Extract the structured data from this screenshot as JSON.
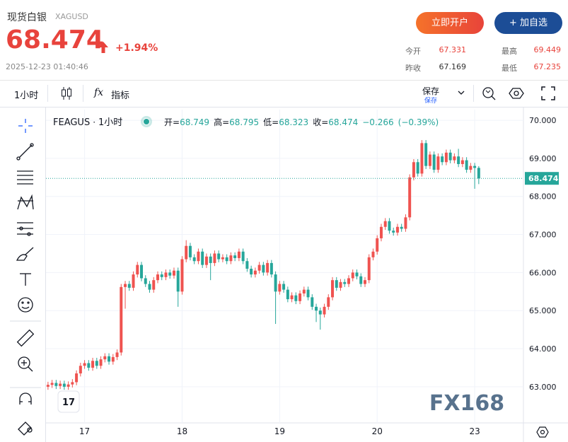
{
  "header": {
    "title": "现货白银",
    "symbol": "XAGUSD",
    "price": "68.474",
    "change": "+1.94%",
    "timestamp": "2025-12-23 01:40:46",
    "open_account": "立即开户",
    "add_watch": "+ 加自选",
    "stats": [
      {
        "label": "今开",
        "value": "67.331"
      },
      {
        "label": "最高",
        "value": "69.449"
      },
      {
        "label": "昨收",
        "value": "67.169"
      },
      {
        "label": "最低",
        "value": "67.235"
      }
    ]
  },
  "toolbar": {
    "interval": "1小时",
    "indicator_icon": "fx",
    "indicators": "指标",
    "save": "保存",
    "save_sub": "保存"
  },
  "chart_data": {
    "type": "candlestick",
    "symbol": "FEAGUS",
    "interval": "1小时",
    "ohlc_labels": [
      "开=",
      "高=",
      "低=",
      "收="
    ],
    "change": {
      "value": -0.266,
      "label": "−0.266"
    },
    "change_pct": {
      "value": -0.39,
      "label": "(−0.39%)"
    },
    "watermark": "FX168",
    "up_color": "#ef5350",
    "down_color": "#26a69a",
    "grid": true,
    "ylim": [
      62.05,
      70.28
    ],
    "yticks": [
      {
        "value": 63,
        "label": "63.000"
      },
      {
        "value": 64,
        "label": "64.000"
      },
      {
        "value": 65,
        "label": "65.000"
      },
      {
        "value": 66,
        "label": "66.000"
      },
      {
        "value": 67,
        "label": "67.000"
      },
      {
        "value": 68,
        "label": "68.000"
      },
      {
        "value": 69,
        "label": "69.000"
      },
      {
        "value": 70,
        "label": "70.000"
      }
    ],
    "categories": [
      null,
      null,
      null,
      null,
      null,
      null,
      null,
      null,
      null,
      "17",
      null,
      null,
      null,
      null,
      null,
      null,
      null,
      null,
      null,
      null,
      null,
      null,
      null,
      null,
      null,
      null,
      null,
      null,
      null,
      null,
      null,
      null,
      null,
      "18",
      null,
      null,
      null,
      null,
      null,
      null,
      null,
      null,
      null,
      null,
      null,
      null,
      null,
      null,
      null,
      null,
      null,
      null,
      null,
      null,
      null,
      null,
      null,
      "19",
      null,
      null,
      null,
      null,
      null,
      null,
      null,
      null,
      null,
      null,
      null,
      null,
      null,
      null,
      null,
      null,
      null,
      null,
      null,
      null,
      null,
      null,
      null,
      "20",
      null,
      null,
      null,
      null,
      null,
      null,
      null,
      null,
      null,
      null,
      null,
      null,
      null,
      null,
      null,
      null,
      null,
      null,
      null,
      null,
      null,
      null,
      null,
      "23",
      null
    ],
    "ohlc": [
      [
        63.0,
        63.13,
        62.92,
        63.05
      ],
      [
        63.05,
        63.18,
        62.97,
        63.1
      ],
      [
        63.1,
        63.18,
        62.94,
        63.02
      ],
      [
        63.02,
        63.16,
        62.94,
        63.08
      ],
      [
        63.08,
        63.16,
        62.92,
        63.0
      ],
      [
        63.0,
        63.14,
        62.92,
        63.06
      ],
      [
        63.06,
        63.2,
        62.98,
        63.12
      ],
      [
        63.12,
        63.43,
        63.04,
        63.35
      ],
      [
        63.35,
        63.63,
        63.27,
        63.55
      ],
      [
        63.55,
        63.7,
        63.47,
        63.62
      ],
      [
        63.62,
        63.7,
        63.42,
        63.5
      ],
      [
        63.5,
        63.76,
        63.42,
        63.68
      ],
      [
        63.68,
        63.76,
        63.47,
        63.55
      ],
      [
        63.55,
        63.8,
        63.47,
        63.72
      ],
      [
        63.72,
        63.88,
        63.64,
        63.8
      ],
      [
        63.8,
        63.88,
        63.58,
        63.66
      ],
      [
        63.66,
        63.86,
        63.58,
        63.78
      ],
      [
        63.78,
        63.98,
        63.7,
        63.9
      ],
      [
        63.9,
        65.7,
        63.82,
        65.62
      ],
      [
        65.62,
        65.78,
        65.05,
        65.7
      ],
      [
        65.7,
        65.78,
        65.52,
        65.6
      ],
      [
        65.6,
        66.03,
        65.52,
        65.95
      ],
      [
        65.95,
        66.28,
        65.87,
        66.2
      ],
      [
        66.2,
        66.28,
        65.77,
        65.85
      ],
      [
        65.85,
        65.93,
        65.62,
        65.7
      ],
      [
        65.7,
        65.78,
        65.47,
        65.55
      ],
      [
        65.55,
        65.88,
        65.47,
        65.8
      ],
      [
        65.8,
        66.03,
        65.72,
        65.95
      ],
      [
        65.95,
        66.03,
        65.8,
        65.88
      ],
      [
        65.88,
        66.08,
        65.8,
        66.0
      ],
      [
        66.0,
        66.08,
        65.84,
        65.92
      ],
      [
        65.92,
        66.13,
        65.84,
        66.05
      ],
      [
        66.05,
        66.13,
        65.1,
        65.5
      ],
      [
        65.5,
        66.43,
        65.42,
        66.35
      ],
      [
        66.35,
        66.85,
        66.27,
        66.7
      ],
      [
        66.7,
        66.78,
        66.32,
        66.4
      ],
      [
        66.4,
        66.48,
        66.22,
        66.3
      ],
      [
        66.3,
        66.63,
        66.22,
        66.55
      ],
      [
        66.55,
        66.63,
        66.12,
        66.2
      ],
      [
        66.2,
        66.5,
        66.12,
        66.42
      ],
      [
        66.42,
        66.5,
        65.8,
        66.25
      ],
      [
        66.25,
        66.58,
        66.17,
        66.5
      ],
      [
        66.5,
        66.58,
        66.27,
        66.35
      ],
      [
        66.35,
        66.48,
        66.27,
        66.4
      ],
      [
        66.4,
        66.48,
        66.22,
        66.3
      ],
      [
        66.3,
        66.53,
        66.22,
        66.45
      ],
      [
        66.45,
        66.53,
        66.3,
        66.38
      ],
      [
        66.38,
        66.63,
        66.3,
        66.55
      ],
      [
        66.55,
        66.63,
        66.22,
        66.3
      ],
      [
        66.3,
        66.38,
        66.02,
        66.1
      ],
      [
        66.1,
        66.18,
        65.87,
        65.95
      ],
      [
        65.95,
        66.13,
        65.87,
        66.05
      ],
      [
        66.05,
        66.28,
        65.97,
        66.2
      ],
      [
        66.2,
        66.28,
        65.92,
        66.0
      ],
      [
        66.0,
        66.33,
        65.92,
        66.25
      ],
      [
        66.25,
        66.33,
        65.87,
        65.95
      ],
      [
        65.95,
        66.03,
        64.65,
        65.5
      ],
      [
        65.5,
        65.78,
        65.42,
        65.7
      ],
      [
        65.7,
        65.78,
        65.47,
        65.55
      ],
      [
        65.55,
        65.63,
        65.22,
        65.3
      ],
      [
        65.3,
        65.48,
        65.22,
        65.4
      ],
      [
        65.4,
        65.48,
        65.17,
        65.25
      ],
      [
        65.25,
        65.53,
        65.17,
        65.45
      ],
      [
        65.45,
        65.63,
        65.37,
        65.55
      ],
      [
        65.55,
        65.63,
        65.27,
        65.35
      ],
      [
        65.35,
        65.43,
        65.02,
        65.1
      ],
      [
        65.1,
        65.18,
        64.7,
        65.0
      ],
      [
        65.0,
        65.08,
        64.5,
        64.9
      ],
      [
        64.9,
        65.18,
        64.82,
        65.1
      ],
      [
        65.1,
        65.43,
        65.02,
        65.35
      ],
      [
        65.35,
        65.88,
        65.27,
        65.8
      ],
      [
        65.8,
        65.88,
        65.52,
        65.6
      ],
      [
        65.6,
        65.83,
        65.52,
        65.75
      ],
      [
        65.75,
        65.83,
        65.62,
        65.7
      ],
      [
        65.7,
        65.93,
        65.62,
        65.85
      ],
      [
        65.85,
        66.08,
        65.77,
        66.0
      ],
      [
        66.0,
        66.08,
        65.82,
        65.9
      ],
      [
        65.9,
        65.98,
        65.62,
        65.7
      ],
      [
        65.7,
        65.88,
        65.62,
        65.8
      ],
      [
        65.8,
        66.48,
        65.72,
        66.4
      ],
      [
        66.4,
        66.63,
        66.32,
        66.55
      ],
      [
        66.55,
        66.98,
        66.47,
        66.9
      ],
      [
        66.9,
        67.28,
        66.82,
        67.2
      ],
      [
        67.2,
        67.43,
        67.12,
        67.35
      ],
      [
        67.35,
        67.43,
        67.02,
        67.1
      ],
      [
        67.1,
        67.18,
        66.97,
        67.05
      ],
      [
        67.05,
        67.28,
        66.97,
        67.2
      ],
      [
        67.2,
        67.28,
        67.07,
        67.15
      ],
      [
        67.15,
        67.53,
        67.07,
        67.45
      ],
      [
        67.45,
        68.58,
        67.37,
        68.5
      ],
      [
        68.5,
        68.98,
        68.42,
        68.9
      ],
      [
        68.9,
        68.98,
        68.52,
        68.6
      ],
      [
        68.6,
        69.48,
        68.52,
        69.4
      ],
      [
        69.4,
        69.48,
        68.72,
        68.8
      ],
      [
        68.8,
        69.18,
        68.72,
        69.1
      ],
      [
        69.1,
        69.18,
        68.62,
        68.7
      ],
      [
        68.7,
        69.13,
        68.62,
        69.05
      ],
      [
        69.05,
        69.13,
        68.82,
        68.9
      ],
      [
        68.9,
        69.23,
        68.82,
        69.15
      ],
      [
        69.15,
        69.23,
        68.87,
        68.95
      ],
      [
        68.95,
        69.13,
        68.87,
        69.05
      ],
      [
        69.05,
        69.25,
        68.77,
        68.85
      ],
      [
        68.85,
        69.03,
        68.77,
        68.95
      ],
      [
        68.95,
        69.03,
        68.62,
        68.7
      ],
      [
        68.7,
        68.88,
        68.62,
        68.8
      ],
      [
        68.8,
        68.88,
        68.2,
        68.749
      ],
      [
        68.749,
        68.795,
        68.323,
        68.474
      ]
    ]
  }
}
